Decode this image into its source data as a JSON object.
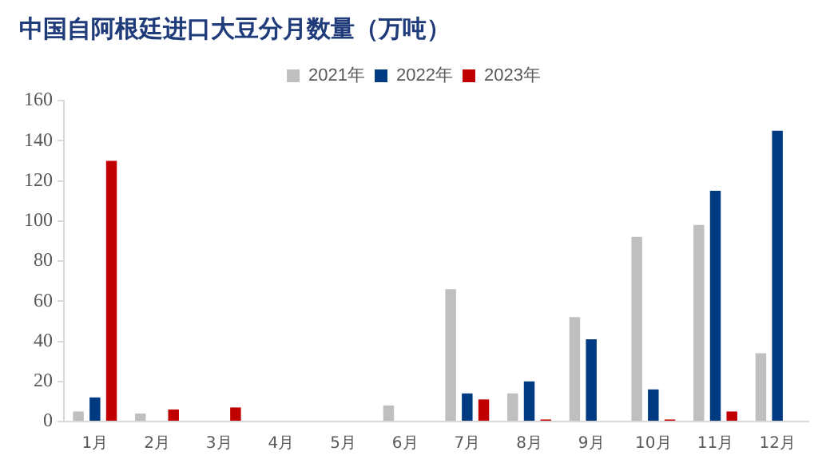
{
  "chart_data": {
    "type": "bar",
    "title": "中国自阿根廷进口大豆分月数量（万吨）",
    "categories": [
      "1月",
      "2月",
      "3月",
      "4月",
      "5月",
      "6月",
      "7月",
      "8月",
      "9月",
      "10月",
      "11月",
      "12月"
    ],
    "series": [
      {
        "name": "2021年",
        "color": "#bfbfbf",
        "values": [
          5,
          4,
          0,
          0,
          0,
          8,
          66,
          14,
          52,
          92,
          98,
          34
        ]
      },
      {
        "name": "2022年",
        "color": "#003a80",
        "values": [
          12,
          0,
          0,
          0,
          0,
          0,
          14,
          20,
          41,
          16,
          115,
          145
        ]
      },
      {
        "name": "2023年",
        "color": "#c00000",
        "values": [
          130,
          6,
          7,
          0,
          0,
          0,
          11,
          1,
          0,
          1,
          5,
          0
        ]
      }
    ],
    "ylim": [
      0,
      160
    ],
    "yticks": [
      0,
      20,
      40,
      60,
      80,
      100,
      120,
      140,
      160
    ],
    "grid": false,
    "legend": "top"
  }
}
